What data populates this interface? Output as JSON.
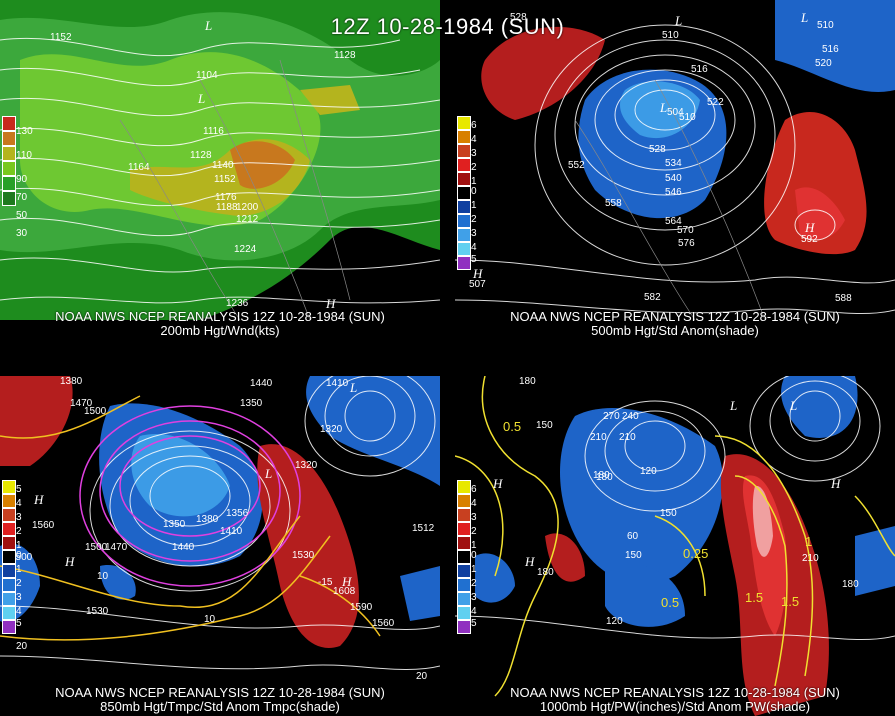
{
  "title": "12Z 10-28-1984 (SUN)",
  "panels": [
    {
      "caption1": "NOAA NWS NCEP REANALYSIS 12Z 10-28-1984 (SUN)",
      "caption2": "200mb Hgt/Wnd(kts)",
      "legend": [
        "130",
        "110",
        "90",
        "70",
        "50",
        "30"
      ],
      "legend_colors": [
        "#c8281e",
        "#c8781e",
        "#b4b41e",
        "#78c81e",
        "#28a028",
        "#1e7a1e"
      ],
      "contour_labels": [
        "1152",
        "1104",
        "1128",
        "1116",
        "1128",
        "1164",
        "1140",
        "1152",
        "1176",
        "1188",
        "1200",
        "1212",
        "1224",
        "1236"
      ],
      "highs": [
        "H"
      ],
      "lows": [
        "L",
        "L"
      ]
    },
    {
      "caption1": "NOAA NWS NCEP REANALYSIS 12Z 10-28-1984 (SUN)",
      "caption2": "500mb Hgt/Std Anom(shade)",
      "legend": [
        "6",
        "4",
        "3",
        "2",
        "1",
        "0",
        "1",
        "2",
        "3",
        "4",
        "5"
      ],
      "legend_colors": [
        "#e8e800",
        "#d88000",
        "#c84020",
        "#e02020",
        "#a01010",
        "#000000",
        "#1040a0",
        "#2070d0",
        "#40a0e8",
        "#60d0f0",
        "#9030c0"
      ],
      "contour_labels": [
        "528",
        "510",
        "516",
        "522",
        "504",
        "510",
        "552",
        "528",
        "534",
        "540",
        "546",
        "558",
        "564",
        "570",
        "576",
        "582",
        "588",
        "592",
        "510",
        "516",
        "520",
        "507"
      ],
      "highs": [
        "H",
        "H"
      ],
      "lows": [
        "L",
        "L",
        "L"
      ]
    },
    {
      "caption1": "NOAA NWS NCEP REANALYSIS 12Z 10-28-1984 (SUN)",
      "caption2": "850mb Hgt/Tmpc/Std Anom Tmpc(shade)",
      "legend": [
        "5",
        "4",
        "3",
        "2",
        "1",
        "0",
        "1",
        "2",
        "3",
        "4",
        "5"
      ],
      "legend_colors": [
        "#e8e800",
        "#d88000",
        "#c84020",
        "#e02020",
        "#a01010",
        "#000000",
        "#1040a0",
        "#2070d0",
        "#40a0e8",
        "#60d0f0",
        "#9030c0"
      ],
      "contour_labels": [
        "1380",
        "1470",
        "1500",
        "1440",
        "1350",
        "1410",
        "1320",
        "1560",
        "1500",
        "1470",
        "1350",
        "1380",
        "1440",
        "1356",
        "1410",
        "1530",
        "1590",
        "1560",
        "1500",
        "1530",
        "1320",
        "1512",
        "1608",
        "10",
        "-15",
        "10",
        "20",
        "20"
      ],
      "highs": [
        "H",
        "H",
        "H"
      ],
      "lows": [
        "L",
        "L"
      ]
    },
    {
      "caption1": "NOAA NWS NCEP REANALYSIS 12Z 10-28-1984 (SUN)",
      "caption2": "1000mb Hgt/PW(inches)/Std Anom PW(shade)",
      "legend": [
        "6",
        "4",
        "3",
        "2",
        "1",
        "0",
        "1",
        "2",
        "3",
        "4",
        "5"
      ],
      "legend_colors": [
        "#e8e800",
        "#d88000",
        "#c84020",
        "#e02020",
        "#a01010",
        "#000000",
        "#1040a0",
        "#2070d0",
        "#40a0e8",
        "#60d0f0",
        "#9030c0"
      ],
      "contour_labels": [
        "180",
        "0.5",
        "150",
        "270",
        "240",
        "210",
        "180",
        "120",
        "150",
        "60",
        "150",
        "0.25",
        "180",
        "0.5",
        "120",
        "210",
        "1.5",
        "180",
        "210",
        "1.5",
        "180",
        "1"
      ],
      "highs": [
        "H",
        "H",
        "H"
      ],
      "lows": [
        "L",
        "L"
      ]
    }
  ]
}
